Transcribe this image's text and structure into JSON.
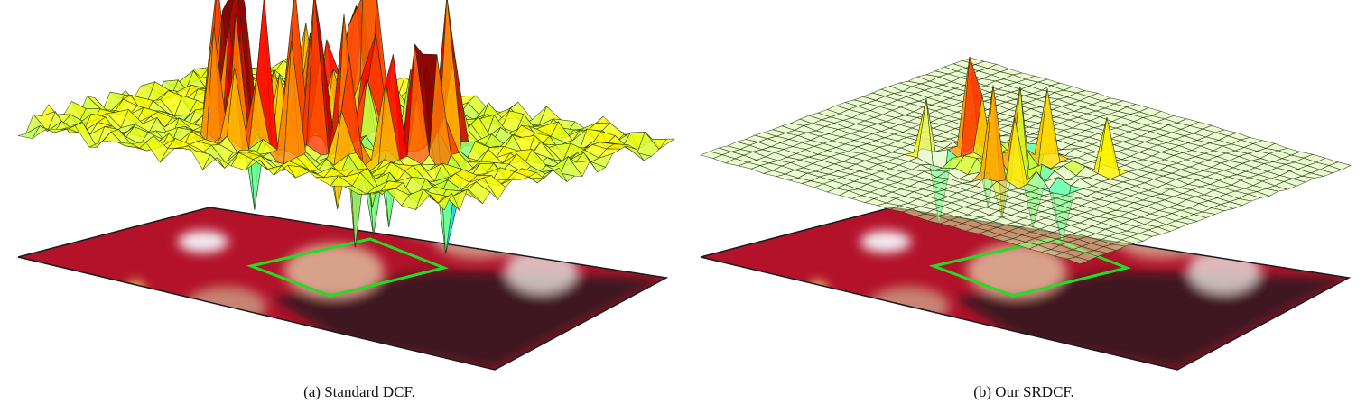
{
  "figure": {
    "panels": [
      {
        "id": "a",
        "caption": "(a) Standard DCF.",
        "surface": "noisy",
        "box_color": "#22dd22"
      },
      {
        "id": "b",
        "caption": "(b) Our SRDCF.",
        "surface": "regularized",
        "box_color": "#22dd22"
      }
    ],
    "colors": {
      "plane_edge": "#1a1a1a",
      "mesh_line": "#1f2d12",
      "background": "#ffffff"
    }
  }
}
